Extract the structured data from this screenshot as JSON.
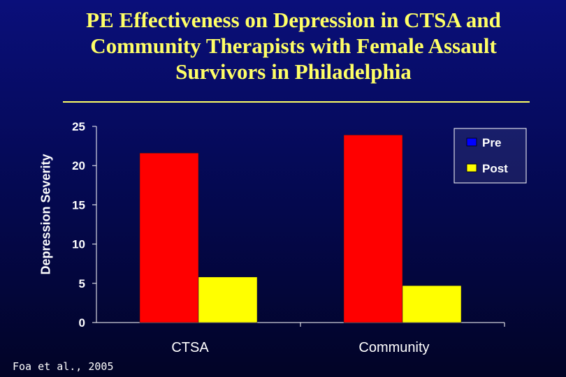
{
  "chart_data": {
    "type": "bar",
    "title": "PE Effectiveness on Depression in CTSA and Community Therapists with Female Assault Survivors in Philadelphia",
    "ylabel": "Depression Severity",
    "xlabel": "",
    "categories": [
      "CTSA",
      "Community"
    ],
    "series": [
      {
        "name": "Pre",
        "values": [
          21.6,
          23.9
        ],
        "color": "#ff0000"
      },
      {
        "name": "Post",
        "values": [
          5.8,
          4.7
        ],
        "color": "#ffff00"
      }
    ],
    "legend_swatches": [
      {
        "name": "Pre",
        "color": "#0000ff"
      },
      {
        "name": "Post",
        "color": "#ffff00"
      }
    ],
    "ylim": [
      0,
      25
    ],
    "yticks": [
      "0",
      "5",
      "10",
      "15",
      "20",
      "25"
    ],
    "legend_position": "top-right",
    "grid": false
  },
  "citation": "Foa et al., 2005"
}
